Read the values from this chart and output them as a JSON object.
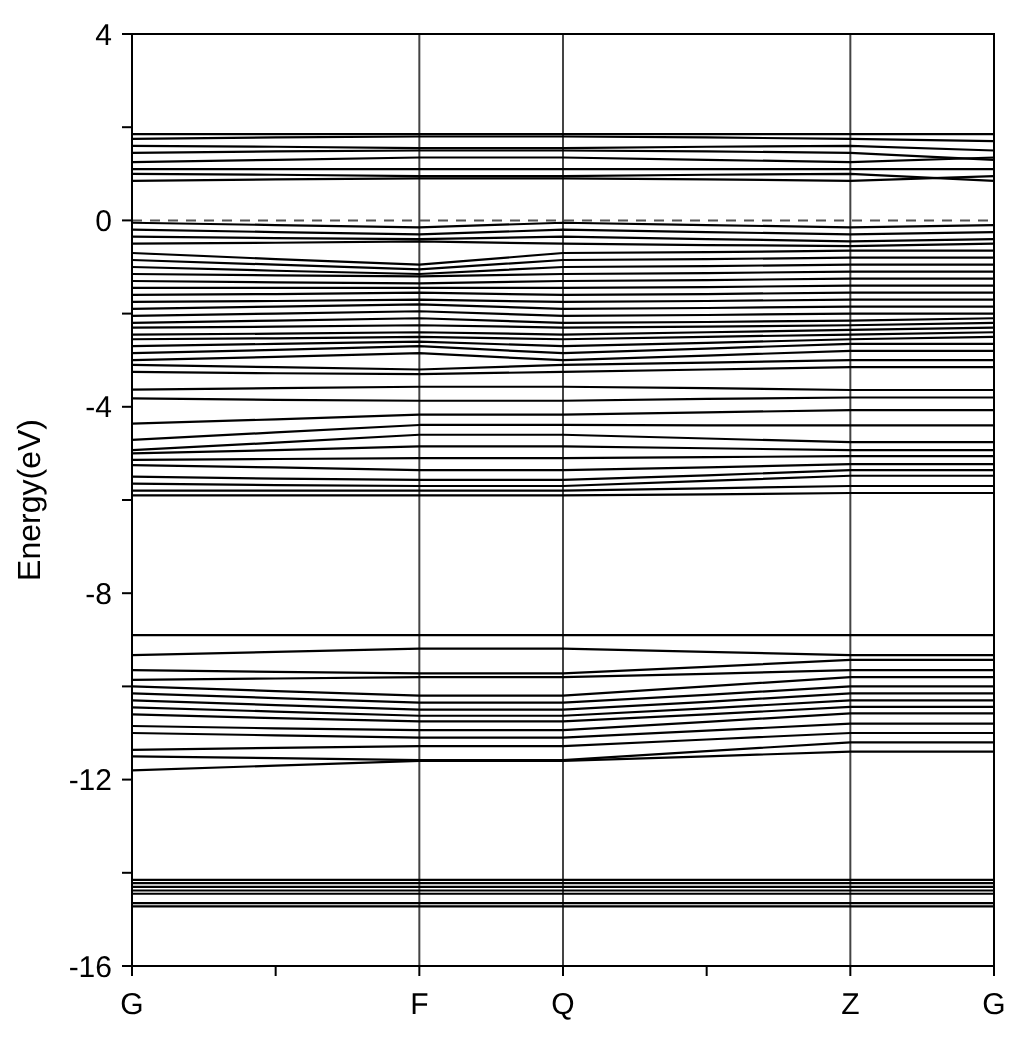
{
  "chart_data": {
    "type": "line",
    "ylabel": "Energy(eV)",
    "categories": [
      "G",
      null,
      "F",
      "Q",
      null,
      "Z",
      "G"
    ],
    "ylim": [
      -16,
      4
    ],
    "yticks": [
      -16,
      {
        "value": -14,
        "label": null
      },
      -12,
      {
        "value": -10,
        "label": null
      },
      -8,
      {
        "value": -6,
        "label": null
      },
      -4,
      {
        "value": -2,
        "label": null
      },
      0,
      {
        "value": 2,
        "label": null
      },
      4
    ],
    "grid": false,
    "line_style": "solid",
    "ref_lines": [
      {
        "axis": "x",
        "value": "F",
        "color": "#444444",
        "line_style": "solid"
      },
      {
        "axis": "x",
        "value": "Q",
        "color": "#444444",
        "line_style": "solid"
      },
      {
        "axis": "x",
        "value": "Z",
        "color": "#444444",
        "line_style": "solid"
      },
      {
        "axis": "y",
        "value": 0,
        "color": "#555555",
        "line_style": "dashed"
      }
    ],
    "series": [
      {
        "color": "#000000",
        "values": [
          1.85,
          1.85,
          1.85,
          1.85,
          1.85,
          1.85,
          1.85
        ]
      },
      {
        "color": "#000000",
        "values": [
          1.75,
          1.78,
          1.8,
          1.8,
          1.78,
          1.75,
          1.7
        ]
      },
      {
        "color": "#000000",
        "values": [
          1.6,
          1.58,
          1.55,
          1.55,
          1.58,
          1.6,
          1.5
        ]
      },
      {
        "color": "#000000",
        "values": [
          1.45,
          1.48,
          1.5,
          1.5,
          1.48,
          1.45,
          1.3
        ]
      },
      {
        "color": "#000000",
        "values": [
          1.25,
          1.3,
          1.35,
          1.35,
          1.3,
          1.25,
          1.35
        ]
      },
      {
        "color": "#000000",
        "values": [
          1.1,
          1.1,
          1.1,
          1.1,
          1.1,
          1.1,
          1.1
        ]
      },
      {
        "color": "#000000",
        "values": [
          1.0,
          0.98,
          0.95,
          0.95,
          0.98,
          1.0,
          0.85
        ]
      },
      {
        "color": "#000000",
        "values": [
          0.85,
          0.88,
          0.9,
          0.9,
          0.88,
          0.85,
          0.95
        ]
      },
      {
        "color": "#000000",
        "values": [
          -0.05,
          -0.1,
          -0.15,
          -0.05,
          -0.1,
          -0.15,
          -0.1
        ]
      },
      {
        "color": "#000000",
        "values": [
          -0.2,
          -0.25,
          -0.3,
          -0.2,
          -0.25,
          -0.3,
          -0.25
        ]
      },
      {
        "color": "#000000",
        "values": [
          -0.35,
          -0.38,
          -0.4,
          -0.35,
          -0.4,
          -0.45,
          -0.4
        ]
      },
      {
        "color": "#000000",
        "values": [
          -0.5,
          -0.48,
          -0.45,
          -0.5,
          -0.53,
          -0.55,
          -0.5
        ]
      },
      {
        "color": "#000000",
        "values": [
          -0.7,
          -0.83,
          -0.95,
          -0.7,
          -0.68,
          -0.65,
          -0.65
        ]
      },
      {
        "color": "#000000",
        "values": [
          -0.85,
          -0.95,
          -1.05,
          -0.85,
          -0.83,
          -0.8,
          -0.8
        ]
      },
      {
        "color": "#000000",
        "values": [
          -1.0,
          -1.08,
          -1.15,
          -1.0,
          -0.98,
          -0.95,
          -0.95
        ]
      },
      {
        "color": "#000000",
        "values": [
          -1.15,
          -1.18,
          -1.2,
          -1.15,
          -1.13,
          -1.1,
          -1.1
        ]
      },
      {
        "color": "#000000",
        "values": [
          -1.3,
          -1.33,
          -1.35,
          -1.3,
          -1.28,
          -1.25,
          -1.25
        ]
      },
      {
        "color": "#000000",
        "values": [
          -1.45,
          -1.45,
          -1.45,
          -1.45,
          -1.43,
          -1.4,
          -1.4
        ]
      },
      {
        "color": "#000000",
        "values": [
          -1.6,
          -1.58,
          -1.55,
          -1.6,
          -1.58,
          -1.55,
          -1.55
        ]
      },
      {
        "color": "#000000",
        "values": [
          -1.75,
          -1.73,
          -1.7,
          -1.75,
          -1.73,
          -1.7,
          -1.7
        ]
      },
      {
        "color": "#000000",
        "values": [
          -1.9,
          -1.85,
          -1.8,
          -1.9,
          -1.88,
          -1.85,
          -1.85
        ]
      },
      {
        "color": "#000000",
        "values": [
          -2.05,
          -2.0,
          -1.95,
          -2.05,
          -2.03,
          -2.0,
          -2.0
        ]
      },
      {
        "color": "#000000",
        "values": [
          -2.2,
          -2.15,
          -2.1,
          -2.2,
          -2.18,
          -2.15,
          -2.1
        ]
      },
      {
        "color": "#000000",
        "values": [
          -2.3,
          -2.28,
          -2.25,
          -2.3,
          -2.28,
          -2.25,
          -2.2
        ]
      },
      {
        "color": "#000000",
        "values": [
          -2.45,
          -2.43,
          -2.4,
          -2.45,
          -2.4,
          -2.35,
          -2.3
        ]
      },
      {
        "color": "#000000",
        "values": [
          -2.55,
          -2.53,
          -2.5,
          -2.55,
          -2.5,
          -2.45,
          -2.4
        ]
      },
      {
        "color": "#000000",
        "values": [
          -2.7,
          -2.65,
          -2.6,
          -2.7,
          -2.63,
          -2.55,
          -2.5
        ]
      },
      {
        "color": "#000000",
        "values": [
          -2.85,
          -2.78,
          -2.7,
          -2.85,
          -2.75,
          -2.65,
          -2.65
        ]
      },
      {
        "color": "#000000",
        "values": [
          -3.0,
          -2.93,
          -2.85,
          -3.0,
          -2.9,
          -2.8,
          -2.8
        ]
      },
      {
        "color": "#000000",
        "values": [
          -3.1,
          -3.15,
          -3.2,
          -3.1,
          -3.05,
          -3.0,
          -3.0
        ]
      },
      {
        "color": "#000000",
        "values": [
          -3.25,
          -3.28,
          -3.3,
          -3.25,
          -3.2,
          -3.15,
          -3.15
        ]
      },
      {
        "color": "#000000",
        "values": [
          -3.63,
          -3.6,
          -3.57,
          -3.57,
          -3.6,
          -3.64,
          -3.64
        ]
      },
      {
        "color": "#000000",
        "values": [
          -3.82,
          -3.85,
          -3.87,
          -3.87,
          -3.83,
          -3.8,
          -3.8
        ]
      },
      {
        "color": "#000000",
        "values": [
          -4.36,
          -4.27,
          -4.17,
          -4.17,
          -4.12,
          -4.07,
          -4.07
        ]
      },
      {
        "color": "#000000",
        "values": [
          -4.71,
          -4.55,
          -4.39,
          -4.39,
          -4.4,
          -4.4,
          -4.4
        ]
      },
      {
        "color": "#000000",
        "values": [
          -4.93,
          -4.77,
          -4.6,
          -4.6,
          -4.68,
          -4.76,
          -4.76
        ]
      },
      {
        "color": "#000000",
        "values": [
          -5.0,
          -4.93,
          -4.85,
          -4.85,
          -4.89,
          -4.93,
          -4.93
        ]
      },
      {
        "color": "#000000",
        "values": [
          -5.14,
          -5.12,
          -5.1,
          -5.1,
          -5.08,
          -5.06,
          -5.06
        ]
      },
      {
        "color": "#000000",
        "values": [
          -5.25,
          -5.3,
          -5.36,
          -5.36,
          -5.3,
          -5.23,
          -5.23
        ]
      },
      {
        "color": "#000000",
        "values": [
          -5.5,
          -5.54,
          -5.57,
          -5.57,
          -5.47,
          -5.36,
          -5.36
        ]
      },
      {
        "color": "#000000",
        "values": [
          -5.65,
          -5.68,
          -5.7,
          -5.7,
          -5.59,
          -5.48,
          -5.48
        ]
      },
      {
        "color": "#000000",
        "values": [
          -5.8,
          -5.8,
          -5.8,
          -5.8,
          -5.75,
          -5.7,
          -5.7
        ]
      },
      {
        "color": "#000000",
        "values": [
          -5.9,
          -5.9,
          -5.9,
          -5.9,
          -5.88,
          -5.85,
          -5.85
        ]
      },
      {
        "color": "#000000",
        "values": [
          -8.9,
          -8.9,
          -8.9,
          -8.9,
          -8.9,
          -8.9,
          -8.9
        ]
      },
      {
        "color": "#000000",
        "values": [
          -9.33,
          -9.26,
          -9.19,
          -9.19,
          -9.26,
          -9.33,
          -9.33
        ]
      },
      {
        "color": "#000000",
        "values": [
          -9.65,
          -9.69,
          -9.72,
          -9.72,
          -9.58,
          -9.43,
          -9.43
        ]
      },
      {
        "color": "#000000",
        "values": [
          -9.86,
          -9.83,
          -9.8,
          -9.8,
          -9.73,
          -9.65,
          -9.65
        ]
      },
      {
        "color": "#000000",
        "values": [
          -10.0,
          -10.1,
          -10.2,
          -10.2,
          -10.0,
          -9.8,
          -9.8
        ]
      },
      {
        "color": "#000000",
        "values": [
          -10.15,
          -10.25,
          -10.35,
          -10.35,
          -10.18,
          -10.0,
          -10.0
        ]
      },
      {
        "color": "#000000",
        "values": [
          -10.3,
          -10.4,
          -10.5,
          -10.5,
          -10.33,
          -10.15,
          -10.15
        ]
      },
      {
        "color": "#000000",
        "values": [
          -10.45,
          -10.54,
          -10.63,
          -10.63,
          -10.47,
          -10.3,
          -10.3
        ]
      },
      {
        "color": "#000000",
        "values": [
          -10.6,
          -10.68,
          -10.75,
          -10.75,
          -10.6,
          -10.44,
          -10.44
        ]
      },
      {
        "color": "#000000",
        "values": [
          -10.85,
          -10.9,
          -10.94,
          -10.94,
          -10.76,
          -10.58,
          -10.58
        ]
      },
      {
        "color": "#000000",
        "values": [
          -11.0,
          -11.05,
          -11.1,
          -11.1,
          -10.95,
          -10.8,
          -10.8
        ]
      },
      {
        "color": "#000000",
        "values": [
          -11.36,
          -11.32,
          -11.28,
          -11.28,
          -11.14,
          -11.0,
          -11.0
        ]
      },
      {
        "color": "#000000",
        "values": [
          -11.5,
          -11.54,
          -11.58,
          -11.58,
          -11.39,
          -11.2,
          -11.2
        ]
      },
      {
        "color": "#000000",
        "values": [
          -11.8,
          -11.7,
          -11.6,
          -11.6,
          -11.5,
          -11.4,
          -11.4
        ]
      },
      {
        "color": "#000000",
        "values": [
          -14.15,
          -14.15,
          -14.15,
          -14.15,
          -14.15,
          -14.15,
          -14.15
        ]
      },
      {
        "color": "#000000",
        "values": [
          -14.22,
          -14.22,
          -14.22,
          -14.22,
          -14.22,
          -14.22,
          -14.22
        ]
      },
      {
        "color": "#000000",
        "values": [
          -14.3,
          -14.3,
          -14.3,
          -14.3,
          -14.3,
          -14.3,
          -14.3
        ]
      },
      {
        "color": "#000000",
        "values": [
          -14.38,
          -14.38,
          -14.38,
          -14.38,
          -14.38,
          -14.38,
          -14.38
        ]
      },
      {
        "color": "#000000",
        "values": [
          -14.45,
          -14.45,
          -14.45,
          -14.45,
          -14.45,
          -14.45,
          -14.45
        ]
      },
      {
        "color": "#000000",
        "values": [
          -14.65,
          -14.65,
          -14.65,
          -14.65,
          -14.65,
          -14.65,
          -14.65
        ]
      },
      {
        "color": "#000000",
        "values": [
          -14.72,
          -14.72,
          -14.72,
          -14.72,
          -14.72,
          -14.72,
          -14.72
        ]
      }
    ]
  }
}
